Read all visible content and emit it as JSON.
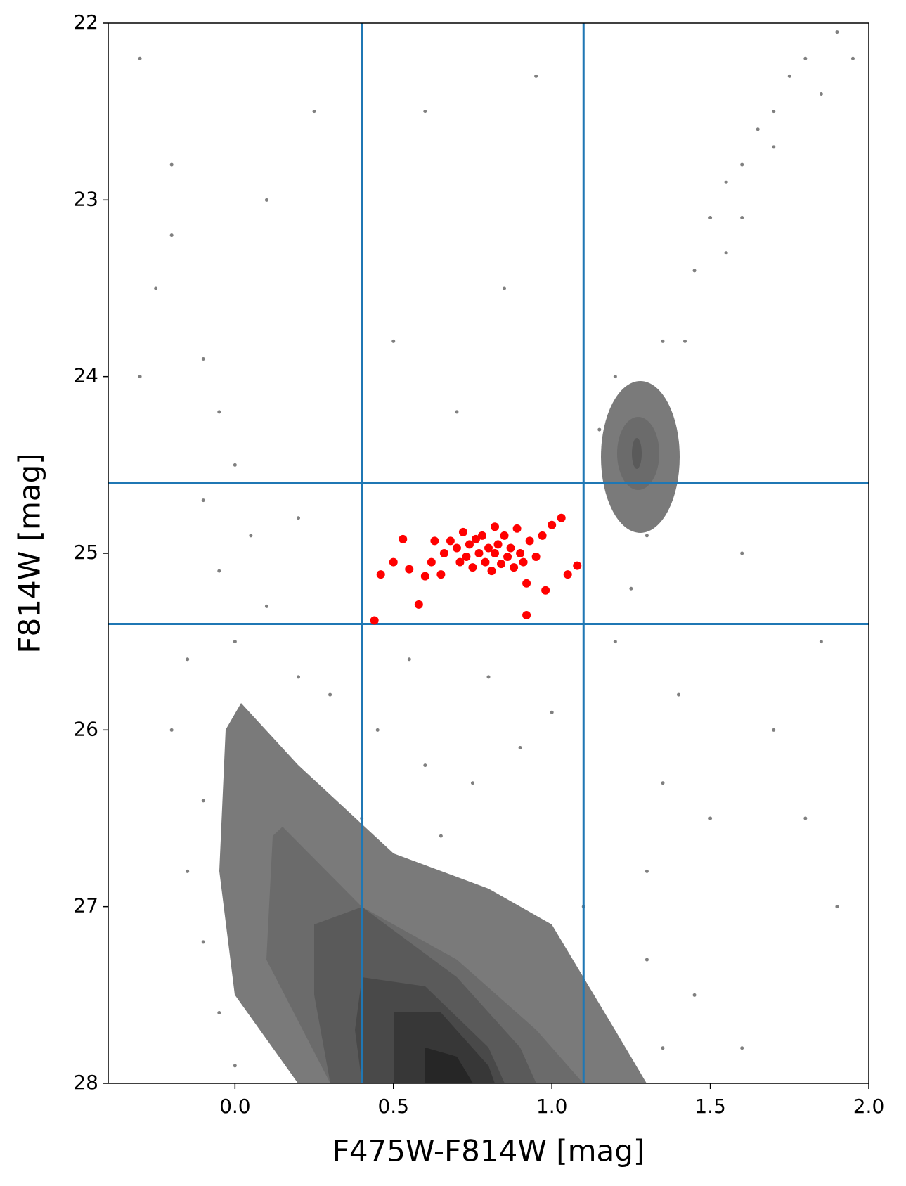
{
  "chart_data": {
    "type": "scatter",
    "xlabel": "F475W-F814W [mag]",
    "ylabel": "F814W [mag]",
    "xlim": [
      -0.4,
      2.0
    ],
    "ylim": [
      28,
      22
    ],
    "xticks": [
      {
        "value": 0,
        "label": "0.0"
      },
      {
        "value": 0.5,
        "label": "0.5"
      },
      {
        "value": 1,
        "label": "1.0"
      },
      {
        "value": 1.5,
        "label": "1.5"
      },
      {
        "value": 2,
        "label": "2.0"
      }
    ],
    "yticks": [
      22,
      23,
      24,
      25,
      26,
      27,
      28
    ],
    "vlines": [
      0.4,
      1.1
    ],
    "hlines": [
      24.6,
      25.4
    ],
    "line_color": "#1f77b4",
    "series": [
      {
        "color": "#808080",
        "marker_size": 2.5,
        "x": [
          -0.3,
          -0.2,
          -0.25,
          -0.1,
          -0.05,
          0.0,
          -0.1,
          0.05,
          -0.05,
          0.1,
          0.0,
          -0.15,
          0.2,
          -0.2,
          -0.1,
          -0.15,
          -0.1,
          -0.05,
          0.0,
          0.1,
          0.2,
          -0.3,
          -0.2,
          0.1,
          0.25,
          0.3,
          0.45,
          0.6,
          0.75,
          0.9,
          1.0,
          0.55,
          0.8,
          0.7,
          0.5,
          0.85,
          0.6,
          0.95,
          0.65,
          0.4,
          1.2,
          1.25,
          1.3,
          1.35,
          1.4,
          1.35,
          1.3,
          1.3,
          1.35,
          1.45,
          1.5,
          1.2,
          1.35,
          1.45,
          1.5,
          1.55,
          1.6,
          1.65,
          1.7,
          1.75,
          1.8,
          1.9,
          1.55,
          1.42,
          1.6,
          1.7,
          1.85,
          1.95,
          1.25,
          1.3,
          1.28,
          1.22,
          1.38,
          1.15,
          1.6,
          1.7,
          1.8,
          1.9,
          1.85,
          1.6,
          0.2,
          0.35,
          0.5,
          0.6,
          0.75,
          0.9,
          1.0,
          1.1,
          1.15,
          0.3,
          0.15,
          0.45,
          0.7,
          0.85
        ],
        "values": [
          22.2,
          22.8,
          23.5,
          23.9,
          24.2,
          24.5,
          24.7,
          24.9,
          25.1,
          25.3,
          25.5,
          25.6,
          25.7,
          26.0,
          26.4,
          26.8,
          27.2,
          27.6,
          27.9,
          27.5,
          24.8,
          24.0,
          23.2,
          23.0,
          22.5,
          25.8,
          26.0,
          26.2,
          26.3,
          26.1,
          25.9,
          25.6,
          25.7,
          24.2,
          23.8,
          23.5,
          22.5,
          22.3,
          26.6,
          26.5,
          25.5,
          25.2,
          24.9,
          24.7,
          25.8,
          26.3,
          26.8,
          27.3,
          27.8,
          27.5,
          26.5,
          24.0,
          23.8,
          23.4,
          23.1,
          22.9,
          22.8,
          22.6,
          22.5,
          22.3,
          22.2,
          22.05,
          23.3,
          23.8,
          23.1,
          22.7,
          22.4,
          22.2,
          24.4,
          24.3,
          24.5,
          24.6,
          24.5,
          24.3,
          25.0,
          26.0,
          26.5,
          27.0,
          25.5,
          27.8,
          27.0,
          27.3,
          27.6,
          27.8,
          27.9,
          27.7,
          27.4,
          27.0,
          27.8,
          26.8,
          27.8,
          26.9,
          27.2,
          27.0
        ]
      },
      {
        "color": "#ff0000",
        "marker_size": 6,
        "x": [
          0.44,
          0.46,
          0.5,
          0.53,
          0.55,
          0.58,
          0.6,
          0.62,
          0.63,
          0.65,
          0.66,
          0.68,
          0.7,
          0.71,
          0.72,
          0.73,
          0.74,
          0.75,
          0.76,
          0.77,
          0.78,
          0.79,
          0.8,
          0.81,
          0.82,
          0.82,
          0.83,
          0.84,
          0.85,
          0.86,
          0.87,
          0.88,
          0.89,
          0.9,
          0.91,
          0.92,
          0.92,
          0.93,
          0.95,
          0.97,
          0.98,
          1.0,
          1.03,
          1.05,
          1.08
        ],
        "values": [
          25.38,
          25.12,
          25.05,
          24.92,
          25.09,
          25.29,
          25.13,
          25.05,
          24.93,
          25.12,
          25.0,
          24.93,
          24.97,
          25.05,
          24.88,
          25.02,
          24.95,
          25.08,
          24.92,
          25.0,
          24.9,
          25.05,
          24.97,
          25.1,
          24.85,
          25.0,
          24.95,
          25.06,
          24.9,
          25.02,
          24.97,
          25.08,
          24.86,
          25.0,
          25.05,
          25.17,
          25.35,
          24.93,
          25.02,
          24.9,
          25.21,
          24.84,
          24.8,
          25.12,
          25.07
        ]
      }
    ]
  }
}
